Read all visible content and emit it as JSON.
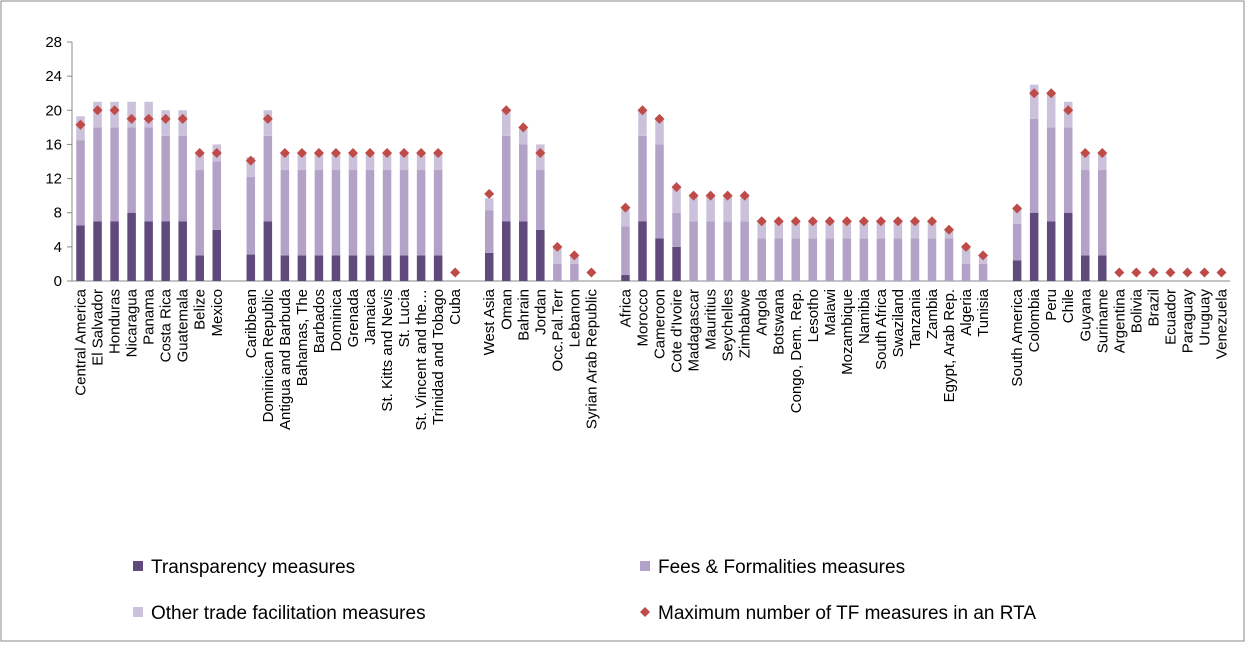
{
  "chart_data": {
    "type": "bar",
    "stacked": true,
    "categories": [
      "Central America",
      "El Salvador",
      "Honduras",
      "Nicaragua",
      "Panama",
      "Costa Rica",
      "Guatemala",
      "Belize",
      "Mexico",
      null,
      "Caribbean",
      "Dominican Republic",
      "Antigua and Barbuda",
      "Bahamas, The",
      "Barbados",
      "Dominica",
      "Grenada",
      "Jamaica",
      "St. Kitts and Nevis",
      "St. Lucia",
      "St. Vincent and the…",
      "Trinidad and Tobago",
      "Cuba",
      null,
      "West Asia",
      "Oman",
      "Bahrain",
      "Jordan",
      "Occ.Pal.Terr",
      "Lebanon",
      "Syrian Arab Republic",
      null,
      "Africa",
      "Morocco",
      "Cameroon",
      "Cote d'Ivoire",
      "Madagascar",
      "Mauritius",
      "Seychelles",
      "Zimbabwe",
      "Angola",
      "Botswana",
      "Congo, Dem. Rep.",
      "Lesotho",
      "Malawi",
      "Mozambique",
      "Namibia",
      "South Africa",
      "Swaziland",
      "Tanzania",
      "Zambia",
      "Egypt, Arab Rep.",
      "Algeria",
      "Tunisia",
      null,
      "South America",
      "Colombia",
      "Peru",
      "Chile",
      "Guyana",
      "Suriname",
      "Argentina",
      "Bolivia",
      "Brazil",
      "Ecuador",
      "Paraguay",
      "Uruguay",
      "Venezuela"
    ],
    "series": [
      {
        "name": "Transparency measures",
        "color": "#604a7b",
        "kind": "bar",
        "values": [
          6.5,
          7,
          7,
          8,
          7,
          7,
          7,
          3,
          6,
          null,
          3.1,
          7,
          3,
          3,
          3,
          3,
          3,
          3,
          3,
          3,
          3,
          3,
          0,
          null,
          3.3,
          7,
          7,
          6,
          0,
          0,
          0,
          null,
          0.7,
          7,
          5,
          4,
          0,
          0,
          0,
          0,
          0,
          0,
          0,
          0,
          0,
          0,
          0,
          0,
          0,
          0,
          0,
          0,
          0,
          0,
          null,
          2.4,
          8,
          7,
          8,
          3,
          3,
          0,
          0,
          0,
          0,
          0,
          0,
          0
        ]
      },
      {
        "name": "Fees & Formalities measures",
        "color": "#b3a2c7",
        "kind": "bar",
        "values": [
          10,
          11,
          11,
          10,
          11,
          10,
          10,
          10,
          8,
          null,
          9.1,
          10,
          10,
          10,
          10,
          10,
          10,
          10,
          10,
          10,
          10,
          10,
          0,
          null,
          5,
          10,
          9,
          7,
          2,
          2,
          0,
          null,
          5.7,
          10,
          11,
          4,
          7,
          7,
          7,
          7,
          5,
          5,
          5,
          5,
          5,
          5,
          5,
          5,
          5,
          5,
          5,
          5,
          2,
          2,
          null,
          4.3,
          11,
          11,
          10,
          10,
          10,
          0,
          0,
          0,
          0,
          0,
          0,
          0
        ]
      },
      {
        "name": "Other trade facilitation measures",
        "color": "#ccc1da",
        "kind": "bar",
        "values": [
          2.8,
          3,
          3,
          3,
          3,
          3,
          3,
          2,
          2,
          null,
          2.3,
          3,
          2,
          2,
          2,
          2,
          2,
          2,
          2,
          2,
          2,
          2,
          0,
          null,
          1.4,
          3,
          2,
          3,
          2,
          1,
          0,
          null,
          2,
          3,
          3,
          3,
          3,
          3,
          3,
          3,
          2,
          2,
          2,
          2,
          2,
          2,
          2,
          2,
          2,
          2,
          2,
          1,
          2,
          1,
          null,
          1.9,
          4,
          4,
          3,
          2,
          2,
          0,
          0,
          0,
          0,
          0,
          0,
          0
        ]
      },
      {
        "name": "Maximum number of TF measures in an RTA",
        "color": "#be4b48",
        "kind": "marker",
        "values": [
          18.3,
          20,
          20,
          19,
          19,
          19,
          19,
          15,
          15,
          null,
          14.1,
          19,
          15,
          15,
          15,
          15,
          15,
          15,
          15,
          15,
          15,
          15,
          1,
          null,
          10.2,
          20,
          18,
          15,
          4,
          3,
          1,
          null,
          8.6,
          20,
          19,
          11,
          10,
          10,
          10,
          10,
          7,
          7,
          7,
          7,
          7,
          7,
          7,
          7,
          7,
          7,
          7,
          6,
          4,
          3,
          null,
          8.5,
          22,
          22,
          20,
          15,
          15,
          1,
          1,
          1,
          1,
          1,
          1,
          1
        ]
      }
    ],
    "ylim": [
      0,
      28
    ],
    "yticks": [
      0,
      4,
      8,
      12,
      16,
      20,
      24,
      28
    ],
    "grid": false
  }
}
